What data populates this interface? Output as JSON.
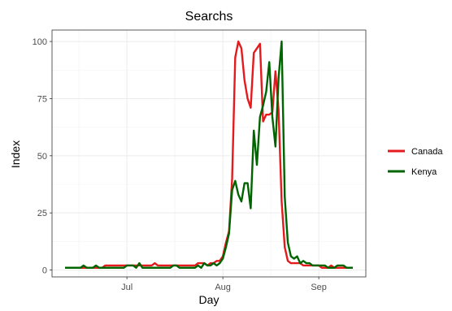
{
  "chart_data": {
    "type": "line",
    "title": "Searchs",
    "xlabel": "Day",
    "ylabel": "Index",
    "x_ticks": [
      "Jul",
      "Aug",
      "Sep"
    ],
    "y_ticks": [
      0,
      25,
      50,
      75,
      100
    ],
    "ylim": [
      -3,
      105
    ],
    "grid": true,
    "legend_position": "right",
    "x_start": "2020-06-11",
    "series": [
      {
        "name": "Canada",
        "color": "#e41a1c",
        "values": [
          1,
          1,
          1,
          1,
          1,
          1,
          1,
          1,
          1,
          1,
          1,
          1,
          1,
          2,
          2,
          2,
          2,
          2,
          2,
          2,
          2,
          2,
          2,
          2,
          2,
          2,
          2,
          2,
          2,
          3,
          2,
          2,
          2,
          2,
          2,
          2,
          2,
          2,
          2,
          2,
          2,
          2,
          2,
          3,
          3,
          3,
          2,
          3,
          3,
          4,
          4,
          6,
          12,
          17,
          40,
          93,
          100,
          97,
          83,
          75,
          71,
          95,
          97,
          99,
          65,
          68,
          68,
          69,
          87,
          70,
          30,
          10,
          4,
          3,
          3,
          3,
          3,
          2,
          2,
          2,
          2,
          2,
          2,
          1,
          1,
          1,
          2,
          1,
          1,
          1,
          1,
          1,
          1,
          1
        ]
      },
      {
        "name": "Kenya",
        "color": "#006400",
        "values": [
          1,
          1,
          1,
          1,
          1,
          1,
          2,
          1,
          1,
          1,
          2,
          1,
          1,
          1,
          1,
          1,
          1,
          1,
          1,
          1,
          2,
          2,
          2,
          1,
          3,
          1,
          1,
          1,
          1,
          1,
          1,
          1,
          1,
          1,
          1,
          2,
          2,
          1,
          1,
          1,
          1,
          1,
          1,
          2,
          1,
          3,
          2,
          2,
          3,
          2,
          3,
          5,
          10,
          16,
          35,
          39,
          33,
          30,
          38,
          38,
          27,
          61,
          46,
          67,
          72,
          78,
          91,
          67,
          54,
          84,
          100,
          32,
          12,
          6,
          5,
          6,
          3,
          4,
          3,
          3,
          2,
          2,
          2,
          2,
          2,
          1,
          1,
          1,
          2,
          2,
          2,
          1,
          1,
          1
        ]
      }
    ]
  }
}
